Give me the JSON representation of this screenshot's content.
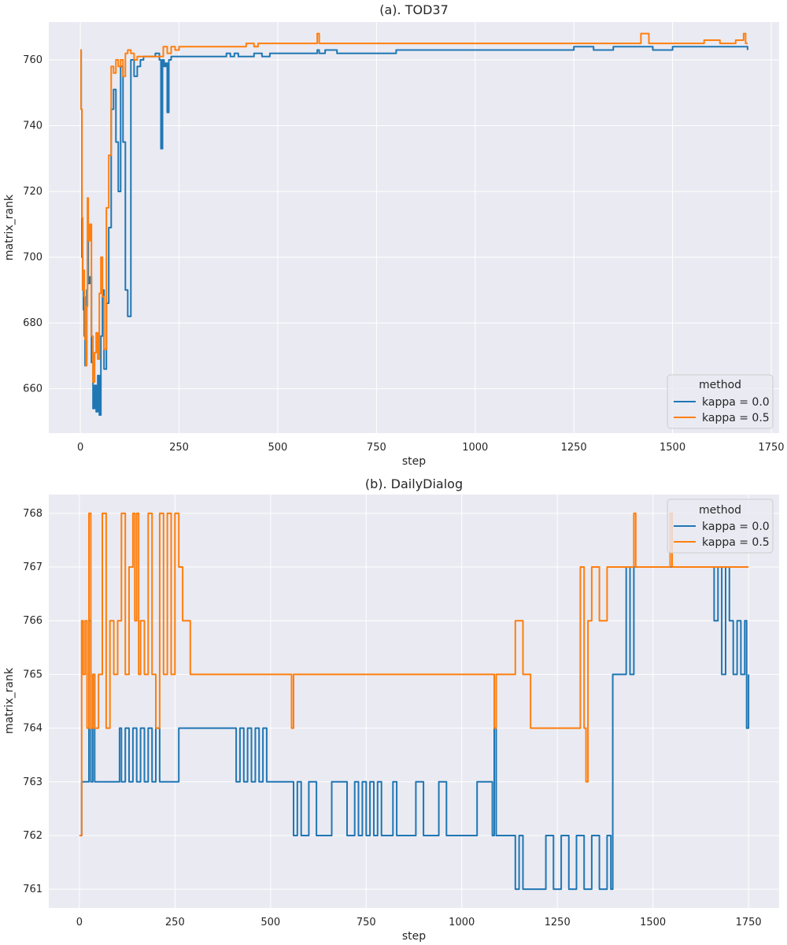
{
  "chart_data": [
    {
      "type": "line",
      "title": "(a). TOD37",
      "xlabel": "step",
      "ylabel": "matrix_rank",
      "xlim": [
        -80,
        1770
      ],
      "ylim": [
        646.5,
        771.5
      ],
      "xticks": [
        0,
        250,
        500,
        750,
        1000,
        1250,
        1500,
        1750
      ],
      "yticks": [
        660,
        680,
        700,
        720,
        740,
        760
      ],
      "grid": true,
      "legend": {
        "title": "method",
        "position": "lower-right"
      },
      "series": [
        {
          "name": "kappa = 0.0",
          "color": "#1f77b4",
          "x": [
            0,
            2,
            4,
            6,
            8,
            10,
            12,
            14,
            16,
            18,
            20,
            24,
            28,
            32,
            36,
            40,
            44,
            48,
            52,
            56,
            60,
            66,
            72,
            78,
            84,
            90,
            96,
            102,
            108,
            114,
            120,
            128,
            136,
            144,
            152,
            160,
            170,
            180,
            190,
            200,
            204,
            208,
            212,
            216,
            220,
            224,
            230,
            240,
            250,
            270,
            300,
            350,
            370,
            380,
            390,
            400,
            420,
            440,
            460,
            480,
            500,
            550,
            600,
            605,
            620,
            650,
            700,
            800,
            1000,
            1050,
            1100,
            1200,
            1250,
            1300,
            1350,
            1400,
            1450,
            1500,
            1550,
            1600,
            1650,
            1680,
            1690
          ],
          "y": [
            763,
            745,
            700,
            690,
            684,
            676,
            667,
            669,
            690,
            705,
            692,
            694,
            668,
            654,
            661,
            653,
            664,
            652,
            676,
            690,
            666,
            686,
            709,
            745,
            751,
            735,
            720,
            758,
            735,
            690,
            682,
            760,
            755,
            758,
            760,
            761,
            761,
            761,
            762,
            760,
            733,
            760,
            758,
            759,
            744,
            760,
            761,
            761,
            761,
            761,
            761,
            761,
            762,
            761,
            762,
            761,
            761,
            762,
            761,
            762,
            762,
            762,
            763,
            762,
            763,
            762,
            762,
            763,
            763,
            763,
            763,
            763,
            764,
            763,
            764,
            764,
            763,
            764,
            764,
            764,
            764,
            764,
            763
          ]
        },
        {
          "name": "kappa = 0.5",
          "color": "#ff7f0e",
          "x": [
            0,
            2,
            4,
            6,
            8,
            10,
            12,
            14,
            16,
            18,
            20,
            24,
            28,
            32,
            36,
            40,
            44,
            48,
            52,
            56,
            60,
            66,
            72,
            78,
            84,
            90,
            96,
            102,
            108,
            114,
            120,
            128,
            136,
            144,
            152,
            160,
            170,
            180,
            190,
            200,
            210,
            220,
            230,
            240,
            250,
            260,
            300,
            350,
            380,
            400,
            420,
            440,
            450,
            460,
            480,
            500,
            600,
            605,
            620,
            700,
            800,
            820,
            900,
            1000,
            1100,
            1200,
            1300,
            1400,
            1420,
            1440,
            1460,
            1500,
            1550,
            1580,
            1620,
            1660,
            1680,
            1685,
            1690
          ],
          "y": [
            763,
            745,
            712,
            690,
            696,
            688,
            675,
            667,
            685,
            718,
            705,
            710,
            676,
            662,
            671,
            677,
            669,
            689,
            700,
            688,
            672,
            715,
            731,
            758,
            756,
            760,
            758,
            760,
            755,
            762,
            763,
            762,
            760,
            761,
            761,
            761,
            761,
            761,
            761,
            761,
            764,
            762,
            764,
            763,
            764,
            764,
            764,
            764,
            764,
            764,
            765,
            764,
            765,
            765,
            765,
            765,
            768,
            765,
            765,
            765,
            765,
            765,
            765,
            765,
            765,
            765,
            765,
            765,
            768,
            765,
            765,
            765,
            765,
            766,
            765,
            766,
            768,
            765,
            765
          ]
        }
      ]
    },
    {
      "type": "line",
      "title": "(b). DailyDialog",
      "xlabel": "step",
      "ylabel": "matrix_rank",
      "xlim": [
        -80,
        1830
      ],
      "ylim": [
        760.65,
        768.35
      ],
      "xticks": [
        0,
        250,
        500,
        750,
        1000,
        1250,
        1500,
        1750
      ],
      "yticks": [
        761,
        762,
        763,
        764,
        765,
        766,
        767,
        768
      ],
      "grid": true,
      "legend": {
        "title": "method",
        "position": "upper-right"
      },
      "series": [
        {
          "name": "kappa = 0.0",
          "color": "#1f77b4",
          "x": [
            0,
            2,
            6,
            20,
            25,
            30,
            35,
            40,
            50,
            60,
            80,
            100,
            105,
            110,
            120,
            130,
            140,
            150,
            160,
            170,
            180,
            190,
            200,
            210,
            220,
            240,
            260,
            280,
            300,
            400,
            410,
            420,
            430,
            440,
            450,
            460,
            470,
            480,
            490,
            500,
            510,
            550,
            560,
            570,
            580,
            600,
            620,
            660,
            700,
            720,
            730,
            740,
            750,
            760,
            770,
            780,
            790,
            800,
            810,
            820,
            830,
            860,
            880,
            900,
            920,
            940,
            960,
            1000,
            1040,
            1080,
            1085,
            1090,
            1100,
            1130,
            1140,
            1150,
            1160,
            1170,
            1200,
            1220,
            1240,
            1260,
            1280,
            1300,
            1320,
            1340,
            1360,
            1380,
            1390,
            1395,
            1400,
            1420,
            1430,
            1440,
            1450,
            1460,
            1500,
            1550,
            1600,
            1650,
            1660,
            1670,
            1680,
            1690,
            1700,
            1710,
            1720,
            1730,
            1740,
            1745,
            1750
          ],
          "y": [
            762,
            762,
            763,
            763,
            766,
            763,
            765,
            763,
            763,
            763,
            763,
            763,
            764,
            763,
            764,
            763,
            764,
            763,
            764,
            763,
            764,
            763,
            764,
            763,
            763,
            763,
            764,
            764,
            764,
            764,
            763,
            764,
            763,
            764,
            763,
            764,
            763,
            764,
            763,
            763,
            763,
            763,
            762,
            763,
            762,
            763,
            762,
            763,
            762,
            763,
            762,
            763,
            762,
            763,
            762,
            763,
            762,
            762,
            762,
            763,
            762,
            762,
            763,
            762,
            762,
            763,
            762,
            762,
            763,
            762,
            764,
            762,
            762,
            762,
            761,
            762,
            761,
            761,
            761,
            762,
            761,
            762,
            761,
            762,
            761,
            762,
            761,
            762,
            761,
            765,
            765,
            765,
            767,
            765,
            767,
            767,
            767,
            767,
            767,
            767,
            766,
            767,
            765,
            767,
            766,
            765,
            766,
            765,
            766,
            764,
            765
          ]
        },
        {
          "name": "kappa = 0.5",
          "color": "#ff7f0e",
          "x": [
            0,
            2,
            6,
            10,
            15,
            20,
            25,
            30,
            35,
            40,
            50,
            60,
            70,
            80,
            90,
            100,
            110,
            120,
            130,
            140,
            145,
            150,
            155,
            160,
            170,
            180,
            190,
            200,
            210,
            220,
            230,
            240,
            250,
            260,
            270,
            280,
            290,
            300,
            320,
            340,
            400,
            500,
            550,
            555,
            560,
            600,
            700,
            800,
            900,
            1000,
            1050,
            1080,
            1085,
            1090,
            1100,
            1140,
            1160,
            1180,
            1200,
            1240,
            1280,
            1300,
            1310,
            1320,
            1325,
            1330,
            1340,
            1360,
            1380,
            1400,
            1420,
            1440,
            1450,
            1455,
            1460,
            1480,
            1500,
            1540,
            1545,
            1550,
            1600,
            1650,
            1700,
            1750
          ],
          "y": [
            762,
            762,
            766,
            765,
            766,
            764,
            768,
            764,
            765,
            764,
            765,
            768,
            764,
            766,
            765,
            766,
            768,
            765,
            767,
            768,
            766,
            768,
            765,
            766,
            765,
            768,
            765,
            764,
            768,
            765,
            768,
            765,
            768,
            767,
            766,
            766,
            765,
            765,
            765,
            765,
            765,
            765,
            765,
            764,
            765,
            765,
            765,
            765,
            765,
            765,
            765,
            765,
            764,
            765,
            765,
            766,
            765,
            764,
            764,
            764,
            764,
            764,
            767,
            764,
            763,
            766,
            767,
            766,
            767,
            767,
            767,
            767,
            768,
            767,
            767,
            767,
            767,
            767,
            768,
            767,
            767,
            767,
            767,
            767
          ]
        }
      ]
    }
  ]
}
